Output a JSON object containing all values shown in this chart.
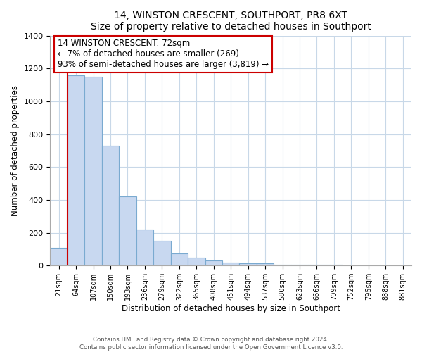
{
  "title": "14, WINSTON CRESCENT, SOUTHPORT, PR8 6XT",
  "subtitle": "Size of property relative to detached houses in Southport",
  "xlabel": "Distribution of detached houses by size in Southport",
  "ylabel": "Number of detached properties",
  "bar_labels": [
    "21sqm",
    "64sqm",
    "107sqm",
    "150sqm",
    "193sqm",
    "236sqm",
    "279sqm",
    "322sqm",
    "365sqm",
    "408sqm",
    "451sqm",
    "494sqm",
    "537sqm",
    "580sqm",
    "623sqm",
    "666sqm",
    "709sqm",
    "752sqm",
    "795sqm",
    "838sqm",
    "881sqm"
  ],
  "bar_values": [
    110,
    1160,
    1150,
    730,
    420,
    220,
    150,
    75,
    50,
    30,
    20,
    15,
    15,
    5,
    5,
    5,
    5,
    0,
    0,
    0,
    0
  ],
  "bar_color": "#c8d8f0",
  "bar_edge_color": "#7aaad0",
  "highlight_line_color": "#cc0000",
  "annotation_title": "14 WINSTON CRESCENT: 72sqm",
  "annotation_line1": "← 7% of detached houses are smaller (269)",
  "annotation_line2": "93% of semi-detached houses are larger (3,819) →",
  "annotation_box_color": "#ffffff",
  "annotation_box_edge": "#cc0000",
  "ylim": [
    0,
    1400
  ],
  "yticks": [
    0,
    200,
    400,
    600,
    800,
    1000,
    1200,
    1400
  ],
  "footer_line1": "Contains HM Land Registry data © Crown copyright and database right 2024.",
  "footer_line2": "Contains public sector information licensed under the Open Government Licence v3.0.",
  "background_color": "#ffffff",
  "grid_color": "#c8d8e8"
}
